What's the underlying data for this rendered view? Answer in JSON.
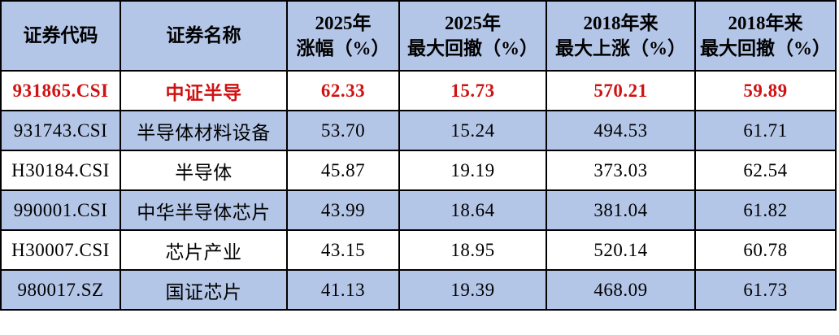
{
  "colors": {
    "header_background": "#b4c6e7",
    "stripe_row_background": "#b4c6e7",
    "plain_row_background": "#ffffff",
    "highlight_text": "#d01212",
    "border": "#000000",
    "body_text": "#000000"
  },
  "chart_data": {
    "type": "table",
    "title": "",
    "columns": [
      "证券代码",
      "证券名称",
      "2025年\n涨幅（%）",
      "2025年\n最大回撤（%）",
      "2018年来\n最大上涨（%）",
      "2018年来\n最大回撤（%）"
    ],
    "rows": [
      {
        "code": "931865.CSI",
        "name": "中证半导",
        "gain_2025_pct": "62.33",
        "max_drawdown_2025_pct": "15.73",
        "max_rise_since_2018_pct": "570.21",
        "max_drawdown_since_2018_pct": "59.89",
        "highlight": true,
        "stripe": false
      },
      {
        "code": "931743.CSI",
        "name": "半导体材料设备",
        "gain_2025_pct": "53.70",
        "max_drawdown_2025_pct": "15.24",
        "max_rise_since_2018_pct": "494.53",
        "max_drawdown_since_2018_pct": "61.71",
        "highlight": false,
        "stripe": true
      },
      {
        "code": "H30184.CSI",
        "name": "半导体",
        "gain_2025_pct": "45.87",
        "max_drawdown_2025_pct": "19.19",
        "max_rise_since_2018_pct": "373.03",
        "max_drawdown_since_2018_pct": "62.54",
        "highlight": false,
        "stripe": false
      },
      {
        "code": "990001.CSI",
        "name": "中华半导体芯片",
        "gain_2025_pct": "43.99",
        "max_drawdown_2025_pct": "18.64",
        "max_rise_since_2018_pct": "381.04",
        "max_drawdown_since_2018_pct": "61.82",
        "highlight": false,
        "stripe": true
      },
      {
        "code": "H30007.CSI",
        "name": "芯片产业",
        "gain_2025_pct": "43.15",
        "max_drawdown_2025_pct": "18.95",
        "max_rise_since_2018_pct": "520.14",
        "max_drawdown_since_2018_pct": "60.78",
        "highlight": false,
        "stripe": false
      },
      {
        "code": "980017.SZ",
        "name": "国证芯片",
        "gain_2025_pct": "41.13",
        "max_drawdown_2025_pct": "19.39",
        "max_rise_since_2018_pct": "468.09",
        "max_drawdown_since_2018_pct": "61.73",
        "highlight": false,
        "stripe": true
      }
    ]
  }
}
